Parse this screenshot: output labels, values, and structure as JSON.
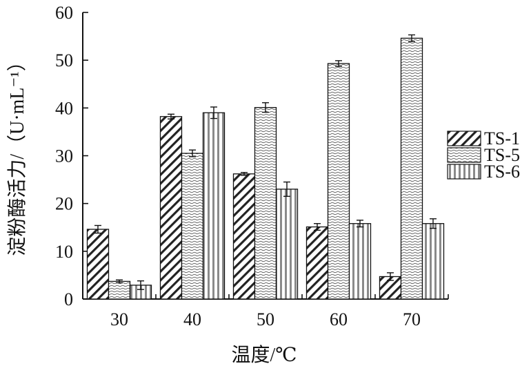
{
  "chart_data": {
    "type": "bar",
    "categories": [
      "30",
      "40",
      "50",
      "60",
      "70"
    ],
    "series": [
      {
        "name": "TS-1",
        "values": [
          14.6,
          38.2,
          26.2,
          15.1,
          4.7
        ],
        "errors": [
          0.8,
          0.5,
          0.3,
          0.7,
          0.8
        ],
        "pattern": "diagonal-hatch"
      },
      {
        "name": "TS-5",
        "values": [
          3.7,
          30.5,
          40.1,
          49.3,
          54.6
        ],
        "errors": [
          0.3,
          0.7,
          1.0,
          0.6,
          0.7
        ],
        "pattern": "wavy"
      },
      {
        "name": "TS-6",
        "values": [
          2.9,
          39.0,
          23.0,
          15.8,
          15.8
        ],
        "errors": [
          0.9,
          1.2,
          1.5,
          0.7,
          1.0
        ],
        "pattern": "vertical-stripes"
      }
    ],
    "xlabel": "温度/℃",
    "ylabel": "淀粉酶活力/（U·mL⁻¹）",
    "ylim": [
      0,
      60
    ],
    "yticks": [
      0,
      10,
      20,
      30,
      40,
      50,
      60
    ],
    "grid": false,
    "legend_position": "right",
    "error_bars": true
  }
}
